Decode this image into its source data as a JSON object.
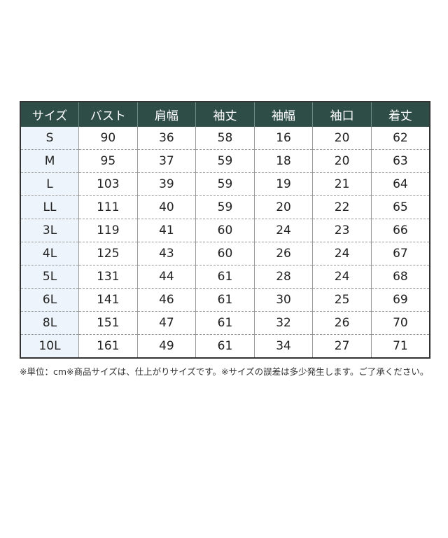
{
  "table": {
    "headers": [
      "サイズ",
      "バスト",
      "肩幅",
      "袖丈",
      "袖幅",
      "袖口",
      "着丈"
    ],
    "rows": [
      [
        "S",
        "90",
        "36",
        "58",
        "16",
        "20",
        "62"
      ],
      [
        "M",
        "95",
        "37",
        "59",
        "18",
        "20",
        "63"
      ],
      [
        "L",
        "103",
        "39",
        "59",
        "19",
        "21",
        "64"
      ],
      [
        "LL",
        "111",
        "40",
        "59",
        "20",
        "22",
        "65"
      ],
      [
        "3L",
        "119",
        "41",
        "60",
        "24",
        "23",
        "66"
      ],
      [
        "4L",
        "125",
        "43",
        "60",
        "26",
        "24",
        "67"
      ],
      [
        "5L",
        "131",
        "44",
        "61",
        "28",
        "24",
        "68"
      ],
      [
        "6L",
        "141",
        "46",
        "61",
        "30",
        "25",
        "69"
      ],
      [
        "8L",
        "151",
        "47",
        "61",
        "32",
        "26",
        "70"
      ],
      [
        "10L",
        "161",
        "49",
        "61",
        "34",
        "27",
        "71"
      ]
    ]
  },
  "note": "※単位：cm※商品サイズは、仕上がりサイズです。※サイズの誤差は多少発生します。ご了承ください。",
  "colors": {
    "header_bg": "#2e4d47",
    "size_col_bg": "#eef4fb"
  }
}
